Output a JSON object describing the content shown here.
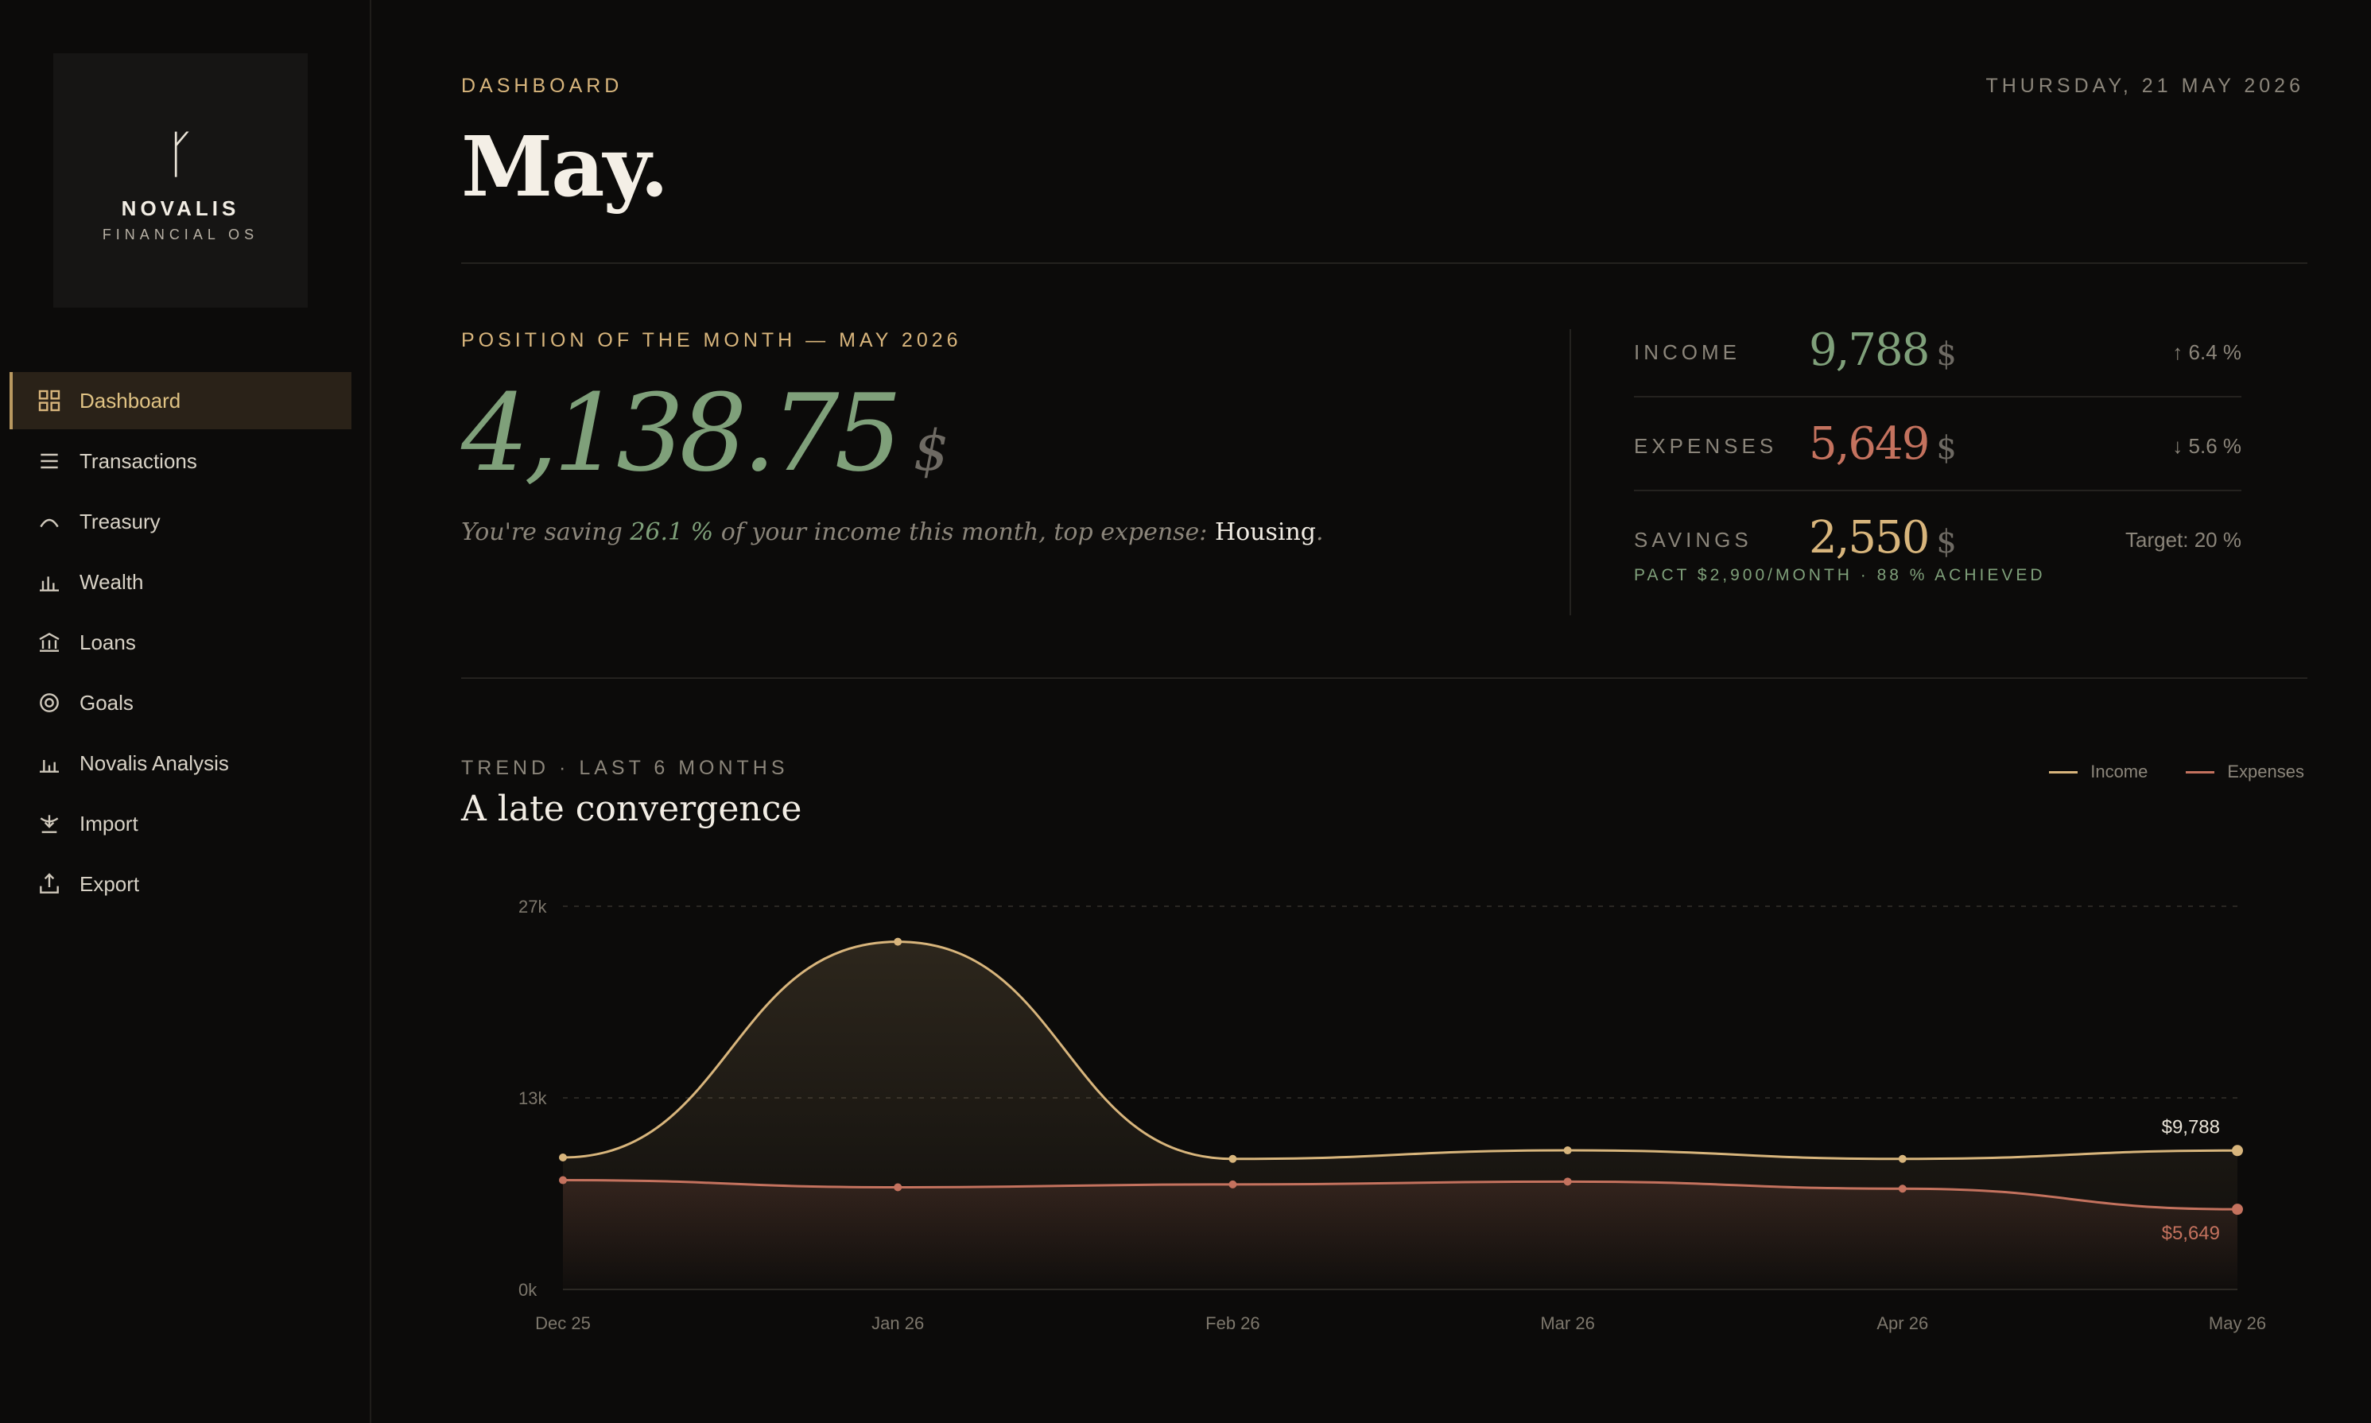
{
  "brand": {
    "glyph": "ᚴ",
    "name": "NOVALIS",
    "subtitle": "FINANCIAL OS"
  },
  "sidebar": {
    "items": [
      {
        "label": "Dashboard",
        "icon": "grid-icon",
        "active": true
      },
      {
        "label": "Transactions",
        "icon": "list-icon"
      },
      {
        "label": "Treasury",
        "icon": "chevron-up-icon"
      },
      {
        "label": "Wealth",
        "icon": "bar-chart-icon"
      },
      {
        "label": "Loans",
        "icon": "bank-icon"
      },
      {
        "label": "Goals",
        "icon": "target-icon"
      },
      {
        "label": "Novalis Analysis",
        "icon": "analysis-chart-icon"
      },
      {
        "label": "Import",
        "icon": "import-icon"
      },
      {
        "label": "Export",
        "icon": "export-icon"
      }
    ]
  },
  "header": {
    "eyebrow": "DASHBOARD",
    "date": "THURSDAY, 21 MAY 2026",
    "title": "May."
  },
  "position": {
    "label": "POSITION OF THE MONTH — MAY 2026",
    "amount": "4,138.75",
    "currency": "$",
    "note_prefix": "You're saving ",
    "note_pct": "26.1 %",
    "note_mid": " of your income this month, top expense: ",
    "note_top_expense": "Housing",
    "note_end": "."
  },
  "stats": {
    "income": {
      "label": "INCOME",
      "value": "9,788",
      "currency": "$",
      "delta": "↑ 6.4 %",
      "color": "#7fa07a"
    },
    "expenses": {
      "label": "EXPENSES",
      "value": "5,649",
      "currency": "$",
      "delta": "↓ 5.6 %",
      "color": "#c4725e"
    },
    "savings": {
      "label": "SAVINGS",
      "value": "2,550",
      "currency": "$",
      "delta": "Target: 20 %",
      "color": "#d8b57c"
    },
    "pact": "PACT $2,900/MONTH · 88 % ACHIEVED"
  },
  "trend": {
    "label": "TREND · LAST 6 MONTHS",
    "title": "A late convergence"
  },
  "colors": {
    "income": "#d8b57c",
    "expenses": "#c4725e",
    "accent": "#d8b57c",
    "positive": "#7fa07a"
  },
  "chart_data": {
    "type": "area",
    "categories": [
      "Dec 25",
      "Jan 26",
      "Feb 26",
      "Mar 26",
      "Apr 26",
      "May 26"
    ],
    "series": [
      {
        "name": "Income",
        "values": [
          9300,
          24500,
          9200,
          9800,
          9200,
          9788
        ],
        "color": "#d8b57c"
      },
      {
        "name": "Expenses",
        "values": [
          7700,
          7200,
          7400,
          7600,
          7100,
          5649
        ],
        "color": "#c4725e"
      }
    ],
    "yticks": [
      "0k",
      "13k",
      "27k"
    ],
    "ytick_values": [
      0,
      13500,
      27000
    ],
    "ylim": [
      0,
      27000
    ],
    "end_labels": {
      "income": "$9,788",
      "expenses": "$5,649"
    },
    "legend": "top-right",
    "grid": true
  }
}
